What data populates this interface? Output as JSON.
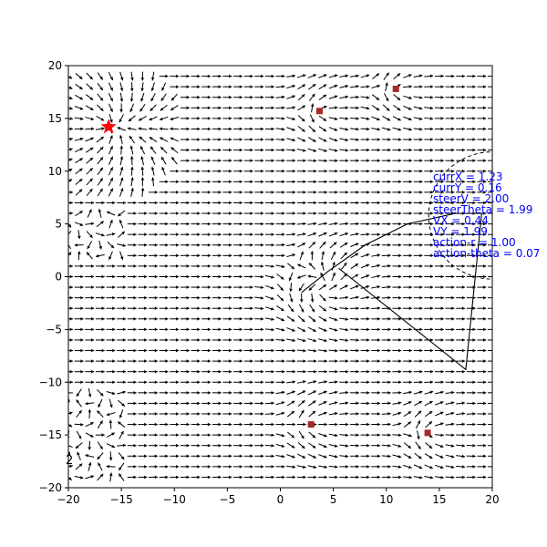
{
  "chart_data": {
    "type": "quiver",
    "title": "",
    "xlabel": "",
    "ylabel": "",
    "xlim": [
      -20,
      20
    ],
    "ylim": [
      -20,
      20
    ],
    "xticks": [
      -20,
      -15,
      -10,
      -5,
      0,
      5,
      10,
      15,
      20
    ],
    "yticks": [
      -20,
      -15,
      -10,
      -5,
      0,
      5,
      10,
      15,
      20
    ],
    "grid": false,
    "goal": {
      "x": -16.2,
      "y": 14.2,
      "marker": "star",
      "color": "#ff0000"
    },
    "obstacles": [
      {
        "x": 3.7,
        "y": 15.7
      },
      {
        "x": 10.9,
        "y": 17.8
      },
      {
        "x": 2.9,
        "y": -14.0
      },
      {
        "x": 13.9,
        "y": -14.8
      }
    ],
    "obstacle_color": "#a52a2a",
    "sensing_circle": {
      "cx": 20.0,
      "cy": 5.8,
      "r": 6.0,
      "style": "dashed"
    },
    "trajectory": [
      [
        2.0,
        -1.5
      ],
      [
        4.5,
        0.5
      ],
      [
        8.0,
        3.0
      ],
      [
        12.0,
        5.0
      ],
      [
        16.5,
        6.0
      ],
      [
        19.0,
        6.0
      ],
      [
        17.5,
        -8.8
      ],
      [
        5.5,
        0.8
      ]
    ],
    "annotations": [
      "currX = 1.23",
      "currY = 0.16",
      "steerV = 2.00",
      "steerTheta = 1.99",
      "VX = 0.44",
      "VY = 1.99",
      "action-r = 1.00",
      "action-theta = 0.07"
    ],
    "corner_label": "2",
    "field_grid": {
      "x_start": -20,
      "x_end": 20,
      "x_step": 1,
      "y_start": -19,
      "y_end": 19,
      "y_step": 1
    }
  },
  "colors": {
    "arrow": "#000000",
    "annotation": "#0000ff",
    "axes": "#000000"
  }
}
